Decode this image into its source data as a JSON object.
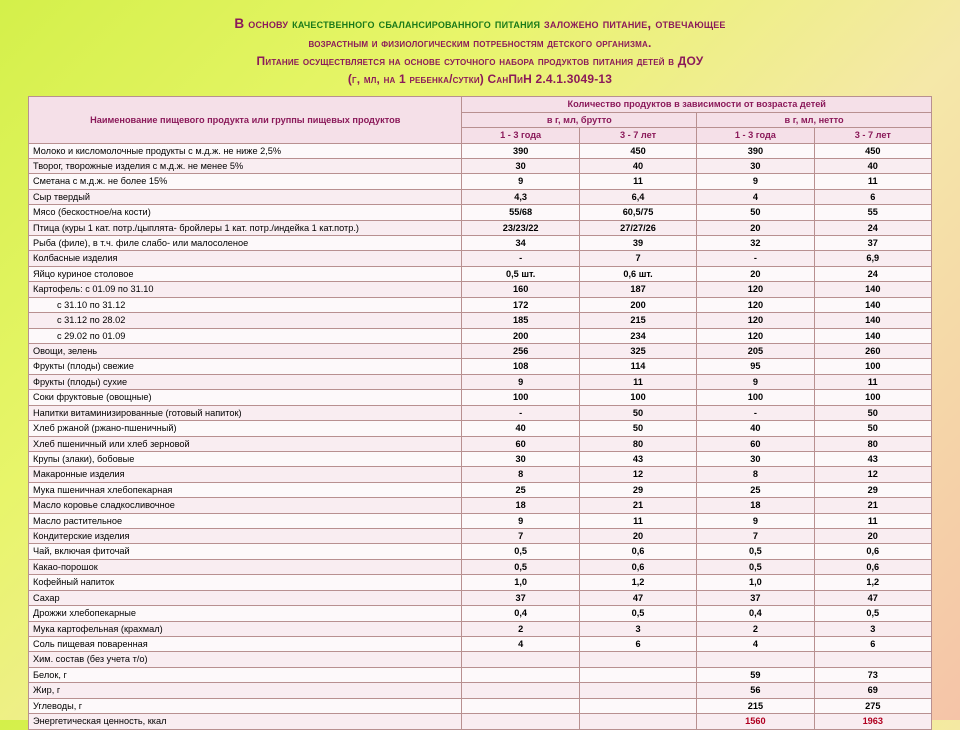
{
  "header": {
    "l1a": "В основу ",
    "l1b": "качественного сбалансированного питания",
    "l1c": " заложено питание, отвечающее",
    "l2": "возрастным и физиологическим потребностям детского организма.",
    "l3": "Питание осуществляется на основе суточного набора продуктов питания детей в ДОУ",
    "l4": "(г, мл, на 1 ребенка/сутки)  СанПиН 2.4.1.3049-13"
  },
  "th": {
    "name": "Наименование пищевого продукта  или группы пищевых продуктов",
    "qty": "Количество продуктов  в зависимости от возраста детей",
    "brutto": "в г, мл,  брутто",
    "netto": "в г, мл,   нетто",
    "a13": "1 - 3  года",
    "a37a": "3 - 7   лет",
    "a37b": "3 - 7 лет"
  },
  "rows": [
    {
      "n": "Молоко и кисломолочные продукты с м.д.ж. не ниже 2,5%",
      "v": [
        "390",
        "450",
        "390",
        "450"
      ]
    },
    {
      "n": "Творог, творожные изделия с м.д.ж. не менее 5%",
      "v": [
        "30",
        "40",
        "30",
        "40"
      ]
    },
    {
      "n": "Сметана с м.д.ж. не более 15%",
      "v": [
        "9",
        "11",
        "9",
        "11"
      ]
    },
    {
      "n": "Сыр твердый",
      "v": [
        "4,3",
        "6,4",
        "4",
        "6"
      ]
    },
    {
      "n": "Мясо (бескостное/на кости)",
      "v": [
        "55/68",
        "60,5/75",
        "50",
        "55"
      ]
    },
    {
      "n": "Птица (куры 1 кат. потр./цыплята- бройлеры 1 кат. потр./индейка 1 кат.потр.)",
      "v": [
        "23/23/22",
        "27/27/26",
        "20",
        "24"
      ]
    },
    {
      "n": "Рыба (филе), в т.ч. филе слабо- или  малосоленое",
      "v": [
        "34",
        "39",
        "32",
        "37"
      ]
    },
    {
      "n": "Колбасные изделия",
      "v": [
        "-",
        "7",
        "-",
        "6,9"
      ]
    },
    {
      "n": "Яйцо куриное столовое",
      "v": [
        "0,5 шт.",
        "0,6 шт.",
        "20",
        "24"
      ]
    },
    {
      "n": "Картофель: с 01.09 по 31.10",
      "v": [
        "160",
        "187",
        "120",
        "140"
      ]
    },
    {
      "n": "с 31.10 по 31.12",
      "v": [
        "172",
        "200",
        "120",
        "140"
      ],
      "indent": true
    },
    {
      "n": "с 31.12 по 28.02",
      "v": [
        "185",
        "215",
        "120",
        "140"
      ],
      "indent": true
    },
    {
      "n": "с 29.02 по 01.09",
      "v": [
        "200",
        "234",
        "120",
        "140"
      ],
      "indent": true
    },
    {
      "n": "Овощи, зелень",
      "v": [
        "256",
        "325",
        "205",
        "260"
      ]
    },
    {
      "n": "Фрукты (плоды) свежие",
      "v": [
        "108",
        "114",
        "95",
        "100"
      ]
    },
    {
      "n": "Фрукты (плоды) сухие",
      "v": [
        "9",
        "11",
        "9",
        "11"
      ]
    },
    {
      "n": "Соки фруктовые (овощные)",
      "v": [
        "100",
        "100",
        "100",
        "100"
      ]
    },
    {
      "n": "Напитки витаминизированные (готовый напиток)",
      "v": [
        "-",
        "50",
        "-",
        "50"
      ]
    },
    {
      "n": "Хлеб ржаной (ржано-пшеничный)",
      "v": [
        "40",
        "50",
        "40",
        "50"
      ]
    },
    {
      "n": "Хлеб пшеничный или хлеб зерновой",
      "v": [
        "60",
        "80",
        "60",
        "80"
      ]
    },
    {
      "n": "Крупы (злаки), бобовые",
      "v": [
        "30",
        "43",
        "30",
        "43"
      ]
    },
    {
      "n": "Макаронные изделия",
      "v": [
        "8",
        "12",
        "8",
        "12"
      ]
    },
    {
      "n": "Мука пшеничная хлебопекарная",
      "v": [
        "25",
        "29",
        "25",
        "29"
      ]
    },
    {
      "n": "Масло коровье сладкосливочное",
      "v": [
        "18",
        "21",
        "18",
        "21"
      ]
    },
    {
      "n": "Масло растительное",
      "v": [
        "9",
        "11",
        "9",
        "11"
      ]
    },
    {
      "n": "Кондитерские изделия",
      "v": [
        "7",
        "20",
        "7",
        "20"
      ]
    },
    {
      "n": "Чай, включая фиточай",
      "v": [
        "0,5",
        "0,6",
        "0,5",
        "0,6"
      ]
    },
    {
      "n": "Какао-порошок",
      "v": [
        "0,5",
        "0,6",
        "0,5",
        "0,6"
      ]
    },
    {
      "n": "Кофейный напиток",
      "v": [
        "1,0",
        "1,2",
        "1,0",
        "1,2"
      ]
    },
    {
      "n": "Сахар",
      "v": [
        "37",
        "47",
        "37",
        "47"
      ]
    },
    {
      "n": "Дрожжи хлебопекарные",
      "v": [
        "0,4",
        "0,5",
        "0,4",
        "0,5"
      ]
    },
    {
      "n": "Мука картофельная (крахмал)",
      "v": [
        "2",
        "3",
        "2",
        "3"
      ]
    },
    {
      "n": "Соль пищевая поваренная",
      "v": [
        "4",
        "6",
        "4",
        "6"
      ]
    },
    {
      "n": "Хим. состав (без учета т/о)",
      "v": [
        "",
        "",
        "",
        ""
      ]
    },
    {
      "n": "Белок, г",
      "v": [
        "",
        "",
        "59",
        "73"
      ]
    },
    {
      "n": "Жир, г",
      "v": [
        "",
        "",
        "56",
        "69"
      ]
    },
    {
      "n": "Углеводы, г",
      "v": [
        "",
        "",
        "215",
        "275"
      ]
    },
    {
      "n": "Энергетическая ценность, ккал",
      "v": [
        "",
        "",
        "1560",
        "1963"
      ],
      "final": true
    }
  ]
}
